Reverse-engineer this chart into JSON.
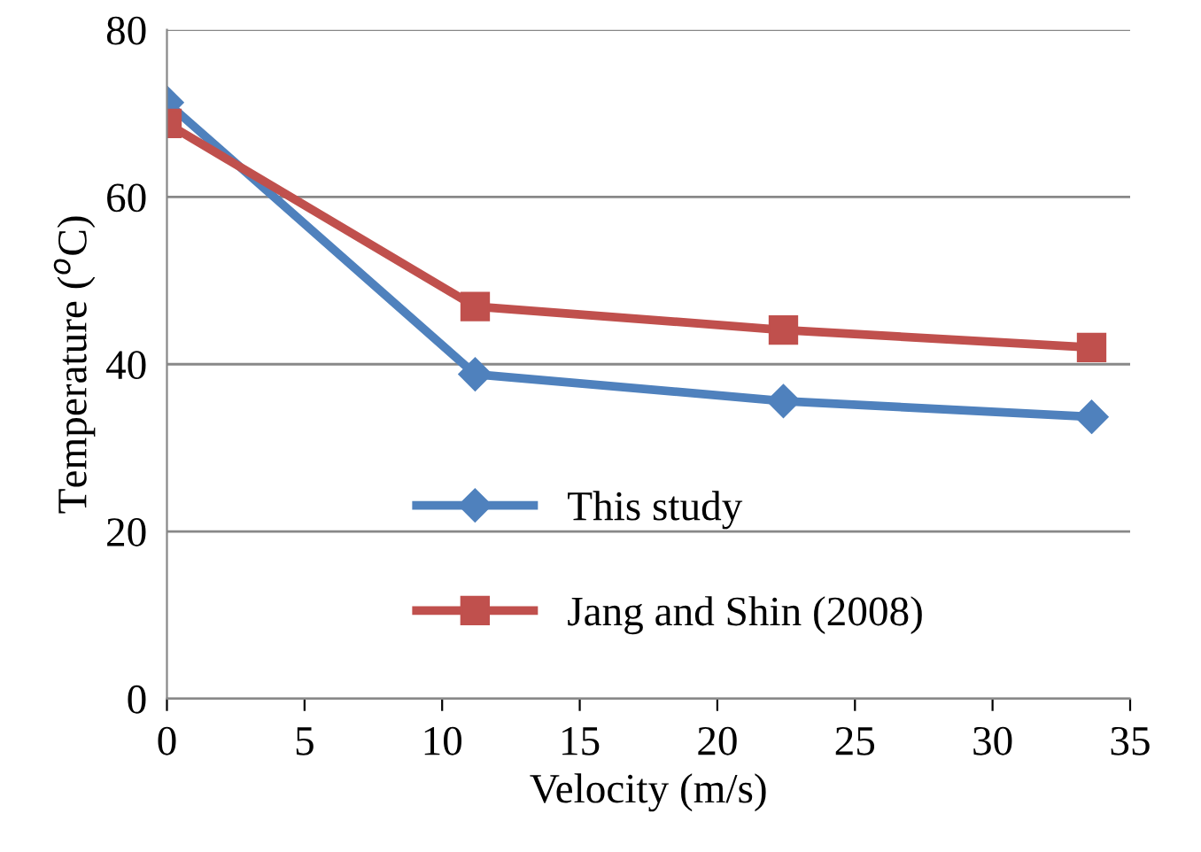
{
  "chart_data": {
    "type": "line",
    "xlabel": "Velocity (m/s)",
    "ylabel": "Temperature ($^{o}$C)",
    "x": [
      0,
      11.2,
      22.4,
      33.6
    ],
    "series": [
      {
        "name": "This study",
        "color": "#4f81bd",
        "values": [
          71.3,
          38.8,
          35.6,
          33.7
        ],
        "marker": "diamond"
      },
      {
        "name": "Jang and Shin (2008)",
        "color": "#c0504d",
        "values": [
          68.8,
          46.9,
          44.1,
          42.0
        ],
        "marker": "square"
      }
    ],
    "xlim": [
      0,
      35
    ],
    "xticks": [
      0,
      5,
      10,
      15,
      20,
      25,
      30,
      35
    ],
    "ylim": [
      0,
      80
    ],
    "yticks": [
      0,
      20,
      40,
      60,
      80
    ],
    "grid": "y",
    "legend": "bottom left",
    "line_style": "solid"
  }
}
